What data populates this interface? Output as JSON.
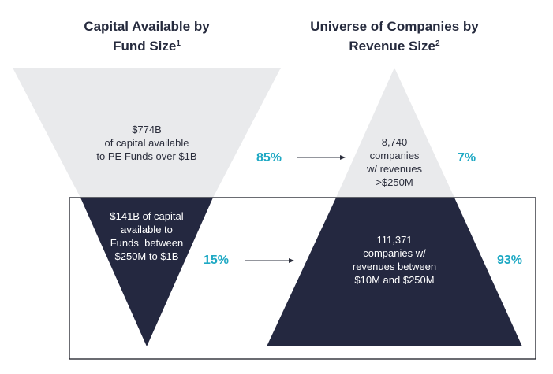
{
  "left_title": {
    "text": "Capital Available by Fund Size",
    "sup": "1"
  },
  "right_title": {
    "text": "Universe of Companies by Revenue Size",
    "sup": "2"
  },
  "left_top": {
    "line1": "$774B",
    "line2": "of capital available",
    "line3": "to PE Funds over $1B"
  },
  "left_bottom": {
    "line1": "$141B of capital",
    "line2": "available to",
    "line3": "Funds  between",
    "line4": "$250M to $1B"
  },
  "right_top": {
    "line1": "8,740",
    "line2": "companies",
    "line3": "w/ revenues",
    "line4": ">$250M"
  },
  "right_bottom": {
    "line1": "111,371",
    "line2": "companies w/",
    "line3": "revenues between",
    "line4": "$10M and $250M"
  },
  "pct_85": "85%",
  "pct_7": "7%",
  "pct_15": "15%",
  "pct_93": "93%",
  "colors": {
    "light_gray": "#e9eaec",
    "navy": "#242840",
    "accent": "#1fa9c4"
  }
}
